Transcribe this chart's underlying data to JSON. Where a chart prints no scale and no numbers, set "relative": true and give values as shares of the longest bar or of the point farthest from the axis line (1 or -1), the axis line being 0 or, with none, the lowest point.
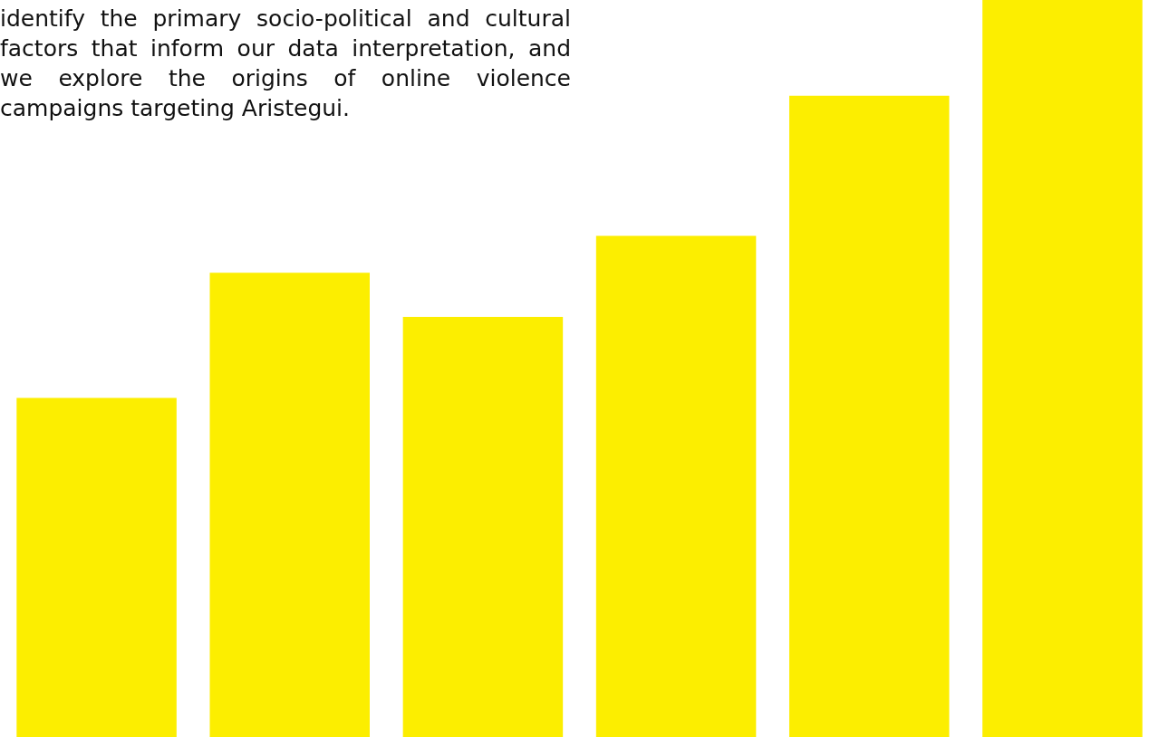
{
  "chart_data": {
    "type": "bar",
    "relative": true,
    "categories": [
      null,
      null,
      null,
      null,
      null,
      null
    ],
    "values": [
      0.46,
      0.63,
      0.57,
      0.68,
      0.87,
      1
    ],
    "color": "#fcee00",
    "annotations": [
      "identify the primary socio-political and cultural factors that inform our data interpretation, and we explore the origins of online violence campaigns targeting Aristegui."
    ]
  }
}
